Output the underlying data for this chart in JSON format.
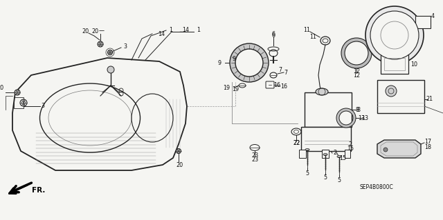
{
  "bg_color": "#f5f5f2",
  "diagram_code": "SEP4B0800C",
  "lc": "#222222",
  "lw": 0.7,
  "fs": 5.8
}
